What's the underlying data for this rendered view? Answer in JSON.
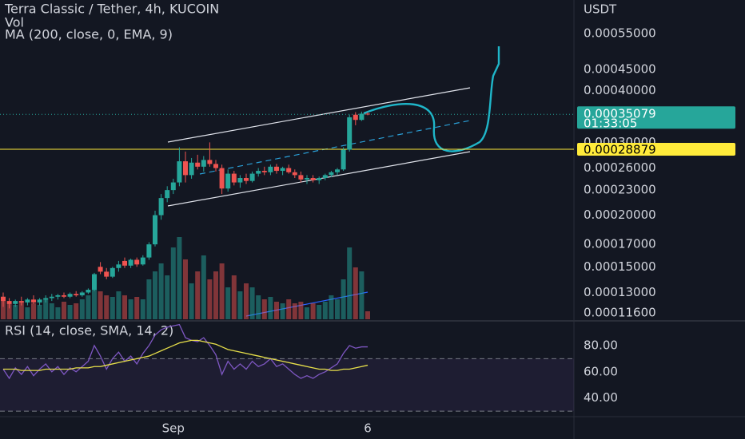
{
  "header": {
    "title": "Terra Classic / Tether, 4h, KUCOIN",
    "volume_label": "Vol",
    "ma_label": "MA (200, close, 0, EMA, 9)",
    "rsi_label": "RSI (14, close, SMA, 14, 2)"
  },
  "chart_data": [
    {
      "type": "candlestick",
      "currency": "USDT",
      "log_scale": true,
      "up_color": "#26a69a",
      "down_color": "#ef5350",
      "categories": [
        null,
        null,
        null,
        null,
        null,
        null,
        null,
        null,
        null,
        null,
        null,
        null,
        null,
        null,
        null,
        null,
        null,
        null,
        null,
        null,
        null,
        null,
        null,
        null,
        null,
        null,
        null,
        null,
        "Sep",
        null,
        null,
        null,
        null,
        null,
        null,
        null,
        null,
        null,
        null,
        null,
        null,
        null,
        null,
        null,
        null,
        null,
        null,
        null,
        null,
        null,
        null,
        null,
        null,
        null,
        null,
        null,
        null,
        null,
        null,
        null,
        "6"
      ],
      "open": [
        0.000127,
        0.000124,
        0.000122,
        0.000124,
        0.000123,
        0.000125,
        0.000123,
        0.000125,
        0.000126,
        0.000127,
        0.000128,
        0.000127,
        0.000129,
        0.000128,
        0.00013,
        0.000132,
        0.00015,
        0.000146,
        0.000142,
        0.000149,
        0.000155,
        0.000151,
        0.000156,
        0.000152,
        0.000158,
        0.00017,
        0.0002,
        0.00022,
        0.00023,
        0.00024,
        0.00027,
        0.00025,
        0.000268,
        0.000262,
        0.000272,
        0.000266,
        0.00026,
        0.000232,
        0.000252,
        0.00024,
        0.000246,
        0.000242,
        0.000252,
        0.000256,
        0.000254,
        0.000262,
        0.000256,
        0.00026,
        0.000254,
        0.00025,
        0.000244,
        0.000246,
        0.000243,
        0.000246,
        0.00025,
        0.000254,
        0.000258,
        0.000288,
        0.00035,
        0.00034,
        0.000352
      ],
      "high": [
        0.00013,
        0.000126,
        0.000125,
        0.000127,
        0.000126,
        0.000128,
        0.000126,
        0.000128,
        0.000129,
        0.000129,
        0.00013,
        0.00013,
        0.000131,
        0.000131,
        0.000133,
        0.000145,
        0.000154,
        0.000149,
        0.00015,
        0.000155,
        0.000158,
        0.000157,
        0.000158,
        0.00016,
        0.000172,
        0.000205,
        0.000225,
        0.000235,
        0.000245,
        0.000292,
        0.000285,
        0.000275,
        0.00028,
        0.000278,
        0.0003,
        0.000272,
        0.000265,
        0.000258,
        0.000256,
        0.00025,
        0.000252,
        0.000255,
        0.00026,
        0.000262,
        0.000265,
        0.000266,
        0.000262,
        0.000265,
        0.000258,
        0.000255,
        0.00025,
        0.00025,
        0.000248,
        0.000252,
        0.000256,
        0.00026,
        0.000292,
        0.00035,
        0.000355,
        0.000356,
        0.000355
      ],
      "low": [
        0.00012,
        0.000119,
        0.00012,
        0.000121,
        0.000121,
        0.000122,
        0.000121,
        0.000123,
        0.000124,
        0.000125,
        0.000126,
        0.000126,
        0.000127,
        0.000127,
        0.000129,
        0.000131,
        0.000144,
        0.00014,
        0.000141,
        0.000146,
        0.000149,
        0.000149,
        0.00015,
        0.000151,
        0.000156,
        0.000168,
        0.000195,
        0.000215,
        0.000225,
        0.000235,
        0.00024,
        0.000245,
        0.000258,
        0.000255,
        0.000262,
        0.000255,
        0.000225,
        0.000228,
        0.000236,
        0.000233,
        0.000238,
        0.00024,
        0.000248,
        0.00025,
        0.00025,
        0.000252,
        0.00025,
        0.000252,
        0.000246,
        0.00024,
        0.000238,
        0.00024,
        0.000238,
        0.000243,
        0.000247,
        0.00025,
        0.000256,
        0.000285,
        0.00033,
        0.000338,
        0.000349
      ],
      "close": [
        0.000124,
        0.000122,
        0.000124,
        0.000123,
        0.000125,
        0.000123,
        0.000125,
        0.000126,
        0.000127,
        0.000128,
        0.000127,
        0.000129,
        0.000128,
        0.00013,
        0.000132,
        0.000144,
        0.000146,
        0.000142,
        0.000149,
        0.000152,
        0.000151,
        0.000156,
        0.000152,
        0.000158,
        0.00017,
        0.0002,
        0.00022,
        0.00023,
        0.00024,
        0.00027,
        0.00025,
        0.000268,
        0.000262,
        0.000272,
        0.000266,
        0.00026,
        0.000232,
        0.000252,
        0.00024,
        0.000246,
        0.000242,
        0.000252,
        0.000256,
        0.000254,
        0.000262,
        0.000256,
        0.00026,
        0.000254,
        0.00025,
        0.000244,
        0.000246,
        0.000243,
        0.000246,
        0.00025,
        0.000254,
        0.000258,
        0.000288,
        0.000345,
        0.00034,
        0.000352,
        0.00035079
      ],
      "ylim": [
        0.000112,
        0.000663
      ],
      "yticks": [
        {
          "value": 0.00055,
          "label": "0.00055000"
        },
        {
          "value": 0.00045,
          "label": "0.00045000"
        },
        {
          "value": 0.0004,
          "label": "0.00040000"
        },
        {
          "value": 0.0003,
          "label": "0.00030000"
        },
        {
          "value": 0.00026,
          "label": "0.00026000"
        },
        {
          "value": 0.00023,
          "label": "0.00023000"
        },
        {
          "value": 0.0002,
          "label": "0.00020000"
        },
        {
          "value": 0.00017,
          "label": "0.00017000"
        },
        {
          "value": 0.00015,
          "label": "0.00015000"
        },
        {
          "value": 0.00013,
          "label": "0.00013000"
        },
        {
          "value": 0.000116,
          "label": "0.00011600"
        }
      ],
      "last_price": {
        "value": 0.00035079,
        "label": "0.00035079",
        "color": "#26a69a"
      },
      "countdown": "01:33:05",
      "hline": {
        "value": 0.00028879,
        "label": "0.00028879",
        "color": "#ffeb3b"
      }
    },
    {
      "type": "bar",
      "values": [
        25,
        20,
        18,
        22,
        15,
        20,
        18,
        25,
        20,
        15,
        22,
        18,
        20,
        25,
        30,
        40,
        35,
        30,
        28,
        35,
        30,
        25,
        28,
        25,
        50,
        60,
        70,
        55,
        90,
        103,
        75,
        45,
        60,
        80,
        50,
        60,
        70,
        40,
        55,
        35,
        45,
        40,
        30,
        25,
        28,
        22,
        20,
        25,
        20,
        22,
        15,
        20,
        18,
        22,
        30,
        25,
        50,
        90,
        65,
        60,
        10
      ],
      "ylim": [
        0,
        110
      ]
    },
    {
      "type": "line",
      "ylim": [
        27,
        97
      ],
      "yticks": [
        {
          "value": 80,
          "label": "80.00"
        },
        {
          "value": 60,
          "label": "60.00"
        },
        {
          "value": 40,
          "label": "40.00"
        }
      ],
      "bands": [
        70,
        30
      ],
      "series": [
        {
          "color": "#7e57c2",
          "values": [
            62,
            55,
            63,
            58,
            64,
            57,
            62,
            66,
            60,
            64,
            58,
            63,
            60,
            64,
            68,
            80,
            72,
            62,
            70,
            75,
            68,
            72,
            66,
            74,
            80,
            88,
            92,
            94,
            95,
            96,
            86,
            84,
            83,
            86,
            80,
            73,
            58,
            68,
            62,
            66,
            62,
            68,
            64,
            66,
            70,
            64,
            66,
            62,
            58,
            55,
            57,
            55,
            58,
            60,
            63,
            66,
            74,
            80,
            78,
            79,
            79
          ]
        },
        {
          "color": "#e8e04a",
          "values": [
            62,
            62,
            62,
            61,
            61,
            61,
            61,
            62,
            62,
            62,
            62,
            62,
            63,
            63,
            63,
            64,
            64,
            65,
            66,
            67,
            68,
            69,
            70,
            71,
            72,
            74,
            76,
            78,
            80,
            82,
            83,
            84,
            84,
            83,
            82,
            81,
            79,
            77,
            76,
            75,
            74,
            73,
            72,
            71,
            70,
            69,
            68,
            67,
            66,
            65,
            64,
            63,
            62,
            62,
            61,
            61,
            62,
            62,
            63,
            64,
            65
          ]
        }
      ]
    }
  ]
}
